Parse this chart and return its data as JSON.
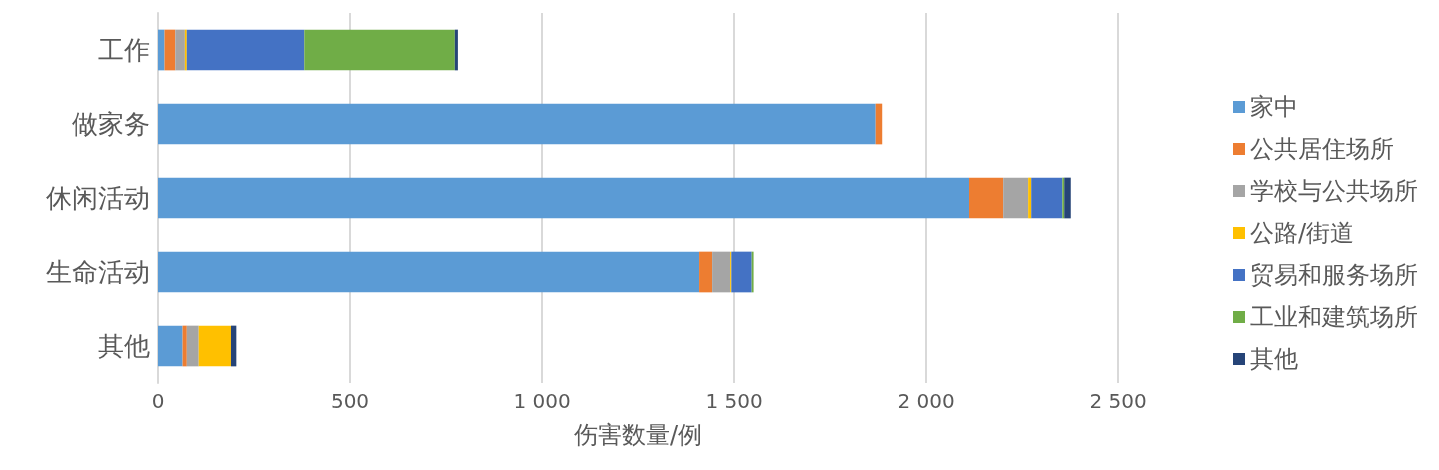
{
  "chart_data": {
    "type": "bar",
    "orientation": "horizontal",
    "stacked": true,
    "xlabel": "伤害数量/例",
    "categories": [
      "工作",
      "做家务",
      "休闲活动",
      "生命活动",
      "其他"
    ],
    "series": [
      {
        "name": "家中",
        "color": "#5b9bd5",
        "values": [
          17,
          1869,
          2112,
          1409,
          64
        ]
      },
      {
        "name": "公共居住场所",
        "color": "#ed7d31",
        "values": [
          28,
          17,
          89,
          34,
          11
        ]
      },
      {
        "name": "学校与公共场所",
        "color": "#a5a5a5",
        "values": [
          25,
          null,
          65,
          47,
          31
        ]
      },
      {
        "name": "公路/街道",
        "color": "#ffc000",
        "values": [
          5,
          null,
          8,
          3,
          84
        ]
      },
      {
        "name": "贸易和服务场所",
        "color": "#4472c4",
        "values": [
          306,
          null,
          81,
          53,
          null
        ]
      },
      {
        "name": "工业和建筑场所",
        "color": "#70ad47",
        "values": [
          392,
          null,
          5,
          5,
          null
        ]
      },
      {
        "name": "其他",
        "color": "#264478",
        "values": [
          8,
          null,
          17,
          null,
          14
        ]
      }
    ],
    "xlim": [
      0,
      2500
    ],
    "xticks": [
      0,
      500,
      {
        "value": 1000,
        "label": "1 000"
      },
      {
        "value": 1500,
        "label": "1 500"
      },
      {
        "value": 2000,
        "label": "2 000"
      },
      {
        "value": 2500,
        "label": "2 500"
      }
    ],
    "grid": "x",
    "legend": "right"
  }
}
